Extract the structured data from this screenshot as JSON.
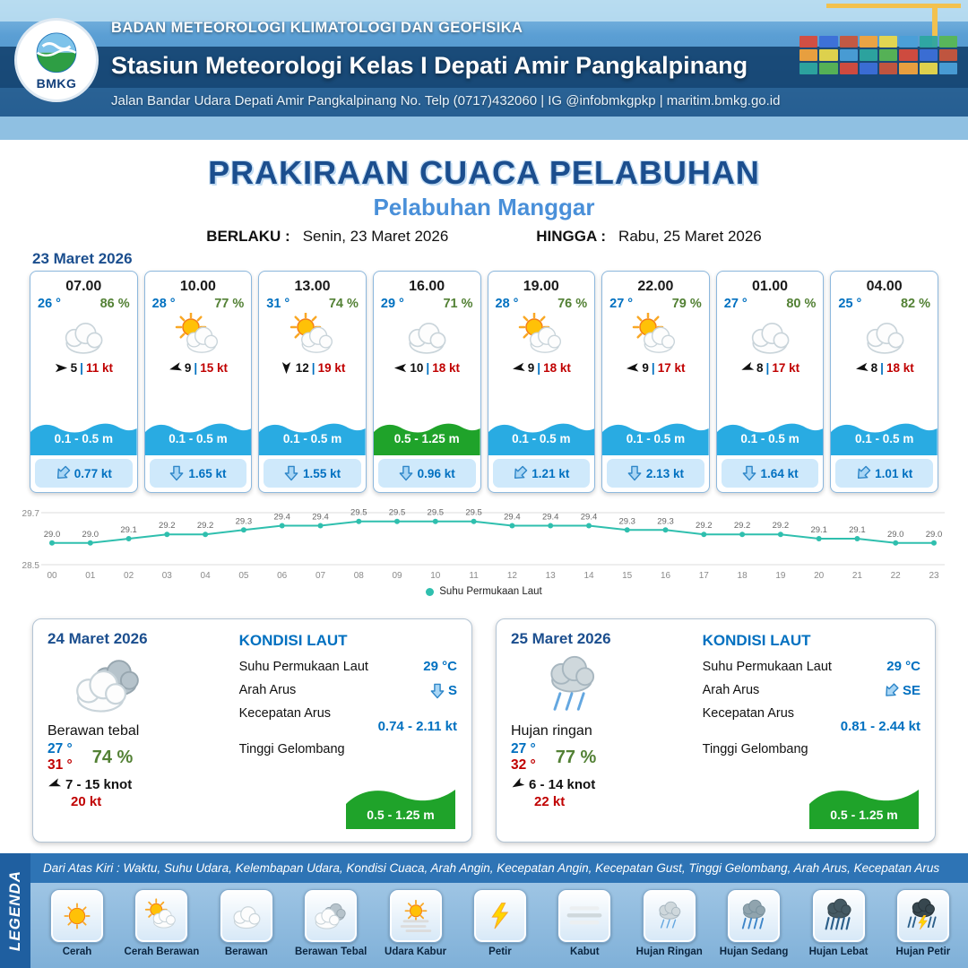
{
  "header": {
    "logo_text": "BMKG",
    "agency": "BADAN METEOROLOGI KLIMATOLOGI DAN GEOFISIKA",
    "station": "Stasiun Meteorologi Kelas I Depati Amir Pangkalpinang",
    "address": "Jalan Bandar Udara Depati Amir Pangkalpinang No. Telp (0717)432060 | IG @infobmkgpkp | maritim.bmkg.go.id"
  },
  "title": {
    "main": "PRAKIRAAN CUACA PELABUHAN",
    "subtitle": "Pelabuhan Manggar",
    "berlaku_label": "BERLAKU :",
    "berlaku_value": "Senin, 23 Maret 2026",
    "hingga_label": "HINGGA :",
    "hingga_value": "Rabu, 25 Maret 2026"
  },
  "forecast": {
    "date": "23 Maret 2026",
    "cards": [
      {
        "time": "07.00",
        "temp": "26 °",
        "rh": "86 %",
        "icon": "berawan",
        "wind_rot": 0,
        "wind": "5",
        "gust": "11 kt",
        "wave": "0.1 - 0.5 m",
        "wave_color": "#29abe2",
        "current": "0.77 kt",
        "current_rot": 45
      },
      {
        "time": "10.00",
        "temp": "28 °",
        "rh": "77 %",
        "icon": "cerah-berawan",
        "wind_rot": 165,
        "wind": "9",
        "gust": "15 kt",
        "wave": "0.1 - 0.5 m",
        "wave_color": "#29abe2",
        "current": "1.65 kt",
        "current_rot": 0
      },
      {
        "time": "13.00",
        "temp": "31 °",
        "rh": "74 %",
        "icon": "cerah-berawan",
        "wind_rot": 90,
        "wind": "12",
        "gust": "19 kt",
        "wave": "0.1 - 0.5 m",
        "wave_color": "#29abe2",
        "current": "1.55 kt",
        "current_rot": 0
      },
      {
        "time": "16.00",
        "temp": "29 °",
        "rh": "71 %",
        "icon": "berawan",
        "wind_rot": 180,
        "wind": "10",
        "gust": "18 kt",
        "wave": "0.5 - 1.25 m",
        "wave_color": "#1fa32a",
        "current": "0.96 kt",
        "current_rot": 0
      },
      {
        "time": "19.00",
        "temp": "28 °",
        "rh": "76 %",
        "icon": "cerah-berawan",
        "wind_rot": 170,
        "wind": "9",
        "gust": "18 kt",
        "wave": "0.1 - 0.5 m",
        "wave_color": "#29abe2",
        "current": "1.21 kt",
        "current_rot": 45
      },
      {
        "time": "22.00",
        "temp": "27 °",
        "rh": "79 %",
        "icon": "cerah-berawan",
        "wind_rot": 175,
        "wind": "9",
        "gust": "17 kt",
        "wave": "0.1 - 0.5 m",
        "wave_color": "#29abe2",
        "current": "2.13 kt",
        "current_rot": 0
      },
      {
        "time": "01.00",
        "temp": "27 °",
        "rh": "80 %",
        "icon": "berawan",
        "wind_rot": 160,
        "wind": "8",
        "gust": "17 kt",
        "wave": "0.1 - 0.5 m",
        "wave_color": "#29abe2",
        "current": "1.64 kt",
        "current_rot": 0
      },
      {
        "time": "04.00",
        "temp": "25 °",
        "rh": "82 %",
        "icon": "berawan",
        "wind_rot": 170,
        "wind": "8",
        "gust": "18 kt",
        "wave": "0.1 - 0.5 m",
        "wave_color": "#29abe2",
        "current": "1.01 kt",
        "current_rot": 45
      }
    ]
  },
  "chart_data": {
    "type": "line",
    "legend_label": "Suhu Permukaan Laut",
    "color": "#2fbfae",
    "x": [
      "00",
      "01",
      "02",
      "03",
      "04",
      "05",
      "06",
      "07",
      "08",
      "09",
      "10",
      "11",
      "12",
      "13",
      "14",
      "15",
      "16",
      "17",
      "18",
      "19",
      "20",
      "21",
      "22",
      "23"
    ],
    "values": [
      29.0,
      29.0,
      29.1,
      29.2,
      29.2,
      29.3,
      29.4,
      29.4,
      29.5,
      29.5,
      29.5,
      29.5,
      29.4,
      29.4,
      29.4,
      29.3,
      29.3,
      29.2,
      29.2,
      29.2,
      29.1,
      29.1,
      29.0,
      29.0
    ],
    "ylim": [
      28.5,
      29.7
    ],
    "grid": true,
    "legend_position": "bottom"
  },
  "sea_labels": {
    "title": "KONDISI LAUT",
    "sst": "Suhu Permukaan Laut",
    "arah": "Arah Arus",
    "kecepatan": "Kecepatan Arus",
    "gelombang": "Tinggi Gelombang"
  },
  "days": [
    {
      "date": "24 Maret 2026",
      "icon": "berawan-tebal",
      "condition": "Berawan tebal",
      "temp_min": "27 °",
      "temp_max": "31 °",
      "rh": "74 %",
      "wind_rot": 160,
      "wind": "7  - 15 knot",
      "gust": "20 kt",
      "sea": {
        "sst": "29 °C",
        "arus_dir": "S",
        "arus_rot": 0,
        "kec": "0.74  - 2.11 kt",
        "gel": "0.5 - 1.25 m"
      }
    },
    {
      "date": "25 Maret 2026",
      "icon": "hujan-ringan",
      "condition": "Hujan ringan",
      "temp_min": "27 °",
      "temp_max": "32 °",
      "rh": "77 %",
      "wind_rot": 150,
      "wind": "6  - 14 knot",
      "gust": "22 kt",
      "sea": {
        "sst": "29 °C",
        "arus_dir": "SE",
        "arus_rot": 45,
        "kec": "0.81  - 2.44 kt",
        "gel": "0.5 - 1.25 m"
      }
    }
  ],
  "legend": {
    "title": "LEGENDA",
    "caption": "Dari Atas Kiri : Waktu, Suhu Udara, Kelembapan Udara, Kondisi Cuaca, Arah Angin, Kecepatan Angin, Kecepatan Gust, Tinggi Gelombang, Arah Arus, Kecepatan Arus",
    "items": [
      {
        "label": "Cerah",
        "icon": "cerah"
      },
      {
        "label": "Cerah Berawan",
        "icon": "cerah-berawan"
      },
      {
        "label": "Berawan",
        "icon": "berawan"
      },
      {
        "label": "Berawan Tebal",
        "icon": "berawan-tebal"
      },
      {
        "label": "Udara Kabur",
        "icon": "udara-kabur"
      },
      {
        "label": "Petir",
        "icon": "petir"
      },
      {
        "label": "Kabut",
        "icon": "kabut"
      },
      {
        "label": "Hujan Ringan",
        "icon": "hujan-ringan"
      },
      {
        "label": "Hujan Sedang",
        "icon": "hujan-sedang"
      },
      {
        "label": "Hujan Lebat",
        "icon": "hujan-lebat"
      },
      {
        "label": "Hujan Petir",
        "icon": "hujan-petir"
      }
    ]
  }
}
